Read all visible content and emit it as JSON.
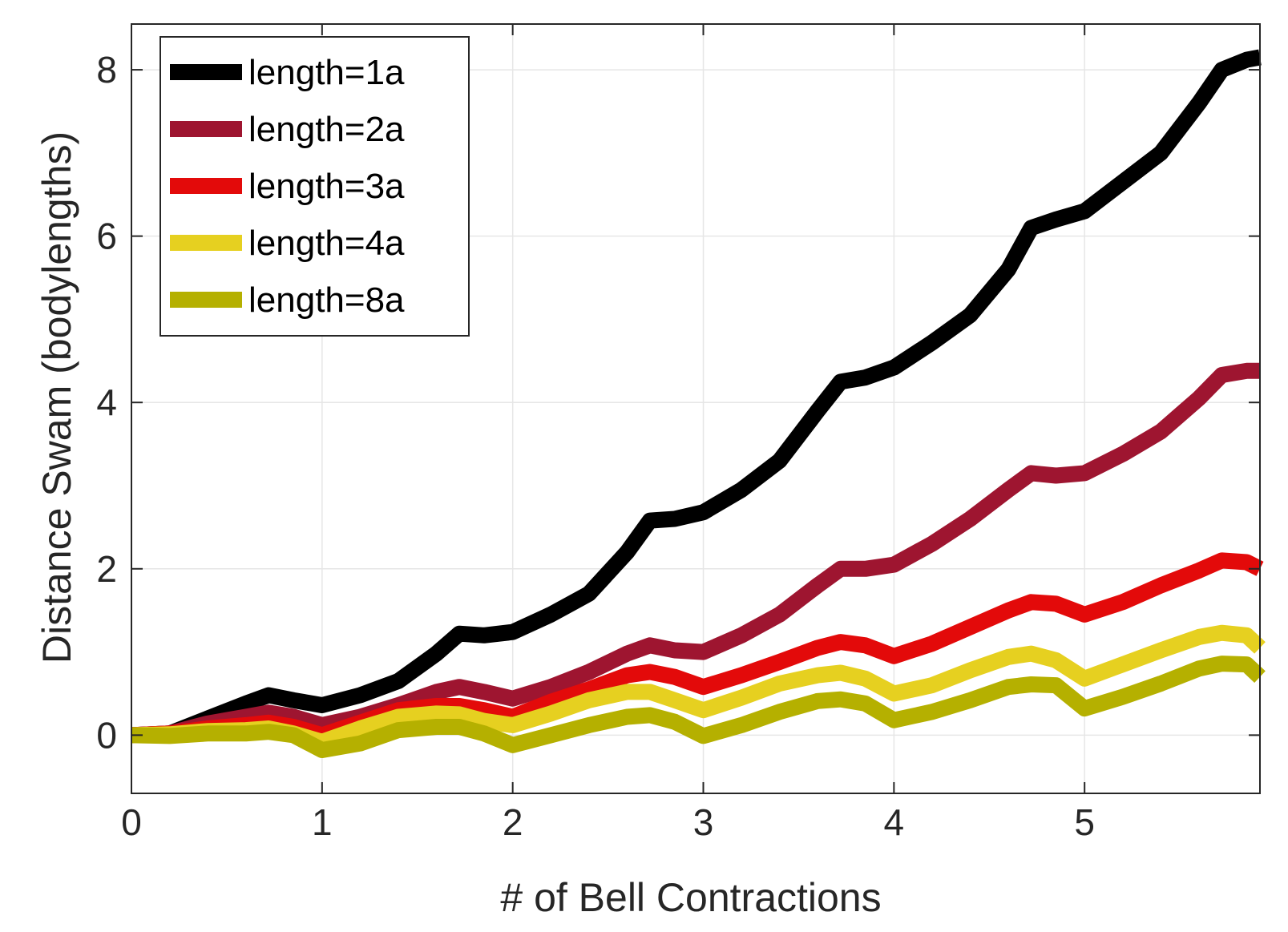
{
  "chart_data": {
    "type": "line",
    "title": "",
    "xlabel": "# of Bell Contractions",
    "ylabel": "Distance Swam (bodylengths)",
    "xlim": [
      0,
      5.92
    ],
    "ylim": [
      -0.7,
      8.55
    ],
    "xticks": [
      0,
      1,
      2,
      3,
      4,
      5
    ],
    "yticks": [
      0,
      2,
      4,
      6,
      8
    ],
    "xtick_labels": [
      "0",
      "1",
      "2",
      "3",
      "4",
      "5"
    ],
    "ytick_labels": [
      "0",
      "2",
      "4",
      "6",
      "8"
    ],
    "grid": true,
    "legend_position": "top-left",
    "x": [
      0,
      0.2,
      0.4,
      0.6,
      0.72,
      0.85,
      1.0,
      1.2,
      1.4,
      1.6,
      1.72,
      1.85,
      2.0,
      2.2,
      2.4,
      2.6,
      2.72,
      2.85,
      3.0,
      3.2,
      3.4,
      3.6,
      3.72,
      3.85,
      4.0,
      4.2,
      4.4,
      4.6,
      4.72,
      4.85,
      5.0,
      5.2,
      5.4,
      5.6,
      5.72,
      5.85,
      5.92
    ],
    "series": [
      {
        "name": "length=1a",
        "color": "#000000",
        "values": [
          0,
          0.02,
          0.2,
          0.38,
          0.48,
          0.42,
          0.36,
          0.48,
          0.65,
          0.98,
          1.22,
          1.2,
          1.24,
          1.45,
          1.7,
          2.2,
          2.58,
          2.6,
          2.68,
          2.95,
          3.3,
          3.9,
          4.25,
          4.3,
          4.42,
          4.72,
          5.05,
          5.6,
          6.1,
          6.2,
          6.3,
          6.65,
          7.0,
          7.6,
          8.0,
          8.12,
          8.15
        ]
      },
      {
        "name": "length=2a",
        "color": "#9e1530",
        "values": [
          0,
          0.02,
          0.14,
          0.22,
          0.27,
          0.22,
          0.12,
          0.22,
          0.36,
          0.52,
          0.58,
          0.52,
          0.44,
          0.58,
          0.76,
          0.98,
          1.08,
          1.02,
          1.0,
          1.2,
          1.45,
          1.8,
          2.0,
          2.0,
          2.05,
          2.3,
          2.6,
          2.95,
          3.15,
          3.12,
          3.15,
          3.38,
          3.65,
          4.05,
          4.33,
          4.38,
          4.38
        ]
      },
      {
        "name": "length=3a",
        "color": "#e30a0a",
        "values": [
          0,
          0.02,
          0.08,
          0.12,
          0.15,
          0.1,
          0.0,
          0.15,
          0.3,
          0.35,
          0.35,
          0.3,
          0.22,
          0.4,
          0.55,
          0.72,
          0.76,
          0.7,
          0.58,
          0.72,
          0.88,
          1.05,
          1.12,
          1.08,
          0.95,
          1.1,
          1.3,
          1.5,
          1.6,
          1.58,
          1.45,
          1.6,
          1.8,
          1.98,
          2.1,
          2.08,
          2.0
        ]
      },
      {
        "name": "length=4a",
        "color": "#e6d020",
        "values": [
          0,
          0.01,
          0.05,
          0.06,
          0.08,
          0.02,
          -0.08,
          0.08,
          0.22,
          0.26,
          0.25,
          0.17,
          0.12,
          0.26,
          0.42,
          0.52,
          0.52,
          0.42,
          0.3,
          0.45,
          0.62,
          0.72,
          0.75,
          0.68,
          0.5,
          0.6,
          0.78,
          0.94,
          0.98,
          0.9,
          0.68,
          0.85,
          1.02,
          1.18,
          1.23,
          1.2,
          1.05
        ]
      },
      {
        "name": "length=8a",
        "color": "#b5b000",
        "values": [
          0,
          -0.01,
          0.02,
          0.02,
          0.04,
          0.0,
          -0.18,
          -0.1,
          0.06,
          0.1,
          0.1,
          0.02,
          -0.12,
          0.0,
          0.12,
          0.22,
          0.24,
          0.16,
          -0.01,
          0.12,
          0.28,
          0.41,
          0.43,
          0.38,
          0.18,
          0.28,
          0.42,
          0.58,
          0.61,
          0.6,
          0.32,
          0.46,
          0.62,
          0.8,
          0.86,
          0.85,
          0.7
        ]
      }
    ]
  }
}
